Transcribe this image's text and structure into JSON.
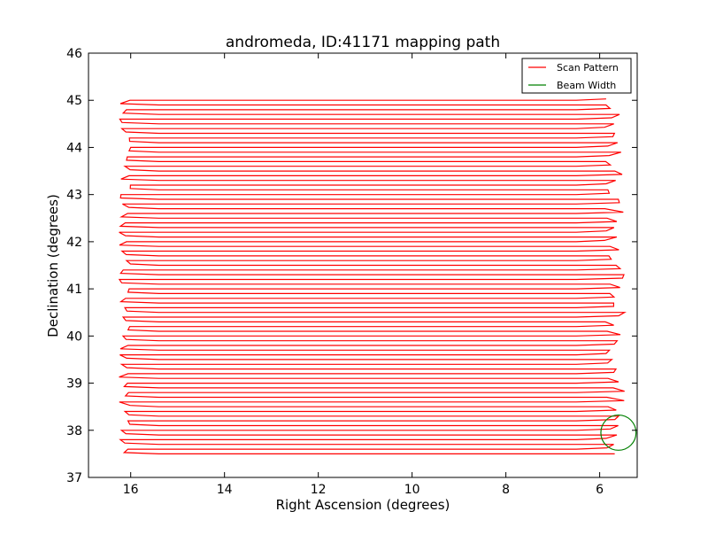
{
  "chart_data": {
    "type": "line",
    "title": "andromeda, ID:41171 mapping path",
    "xlabel": "Right Ascension (degrees)",
    "ylabel": "Declination (degrees)",
    "xlim": [
      16.9,
      5.2
    ],
    "ylim": [
      37,
      46
    ],
    "x_inverted": true,
    "xticks": [
      16,
      14,
      12,
      10,
      8,
      6
    ],
    "xtick_labels": [
      "16",
      "14",
      "12",
      "10",
      "8",
      "6"
    ],
    "yticks": [
      37,
      38,
      39,
      40,
      41,
      42,
      43,
      44,
      45,
      46
    ],
    "ytick_labels": [
      "37",
      "38",
      "39",
      "40",
      "41",
      "42",
      "43",
      "44",
      "45",
      "46"
    ],
    "grid": false,
    "legend_position": "top-right",
    "legend": [
      {
        "label": "Scan Pattern",
        "color": "#ff0000"
      },
      {
        "label": "Beam Width",
        "color": "#008000"
      }
    ],
    "series": [
      {
        "name": "Scan Pattern",
        "color": "#ff0000",
        "pattern": "boustrophedon raster",
        "dec_start": 37.5,
        "dec_end": 45.0,
        "dec_step": 0.1,
        "ra_west_edge": 5.9,
        "ra_east_edge": 16.0
      },
      {
        "name": "Beam Width",
        "color": "#008000",
        "shape": "circle",
        "center_ra": 5.6,
        "center_dec": 37.95,
        "diameter_deg": 0.75
      }
    ]
  }
}
